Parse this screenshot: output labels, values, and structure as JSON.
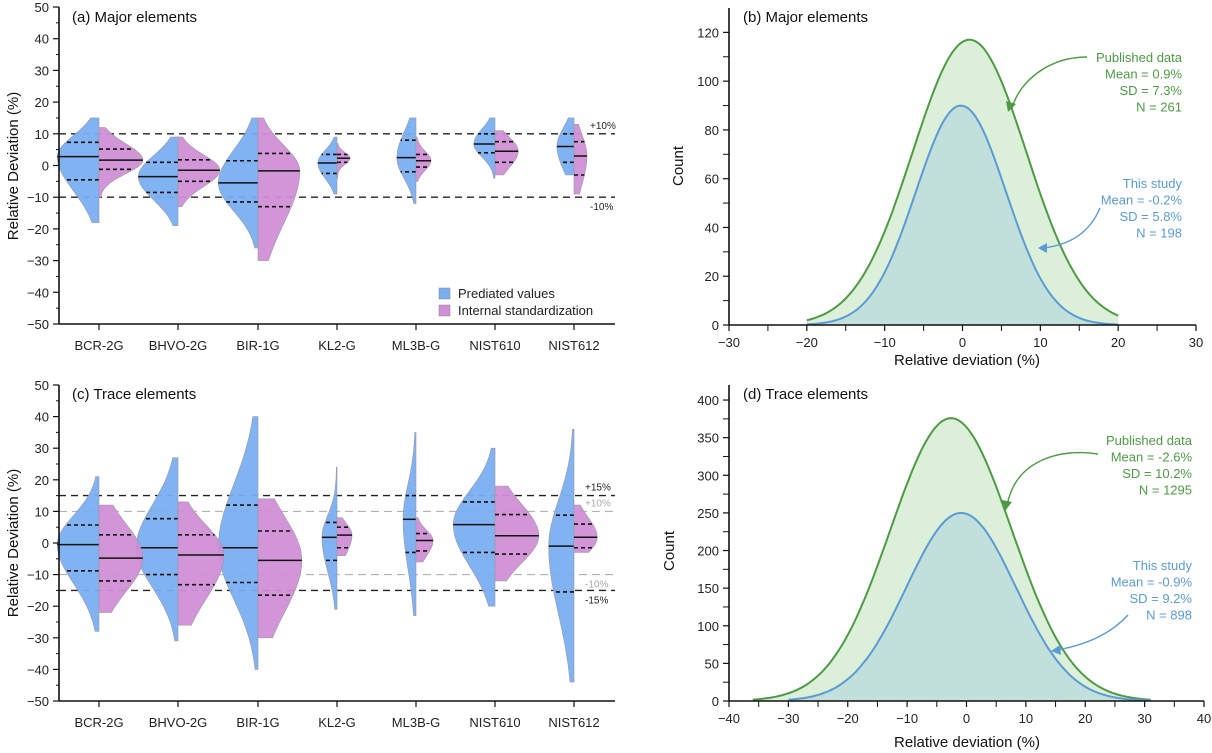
{
  "chart_data": [
    {
      "id": "a",
      "type": "violin",
      "title": "(a) Major elements",
      "xlabel": "",
      "ylabel": "Relative Deviation (%)",
      "ylim": [
        -50,
        50
      ],
      "yticks": [
        50,
        40,
        30,
        20,
        10,
        0,
        -10,
        -20,
        -30,
        -40,
        -50
      ],
      "categories": [
        "BCR-2G",
        "BHVO-2G",
        "BIR-1G",
        "KL2-G",
        "ML3B-G",
        "NIST610",
        "NIST612"
      ],
      "reference_lines": [
        {
          "value": 10,
          "label": "+10%",
          "style": "dark"
        },
        {
          "value": -10,
          "label": "-10%",
          "style": "dark"
        }
      ],
      "legend": {
        "placement": "bottom-right",
        "entries": [
          {
            "name": "Prediated values",
            "color": "#7aaef0"
          },
          {
            "name": "Internal standardization",
            "color": "#d08fd6"
          }
        ]
      },
      "series": [
        {
          "name": "Prediated values",
          "side": "left",
          "color": "#7aaef0",
          "stats": [
            {
              "min": -18,
              "max": 15,
              "q1": -4.5,
              "median": 2.8,
              "q3": 7.3,
              "width": 1.0
            },
            {
              "min": -19,
              "max": 9,
              "q1": -8.5,
              "median": -3.5,
              "q3": 1.0,
              "width": 0.95
            },
            {
              "min": -26,
              "max": 15,
              "q1": -11.5,
              "median": -5.5,
              "q3": 1.5,
              "width": 0.95
            },
            {
              "min": -9,
              "max": 9,
              "q1": -2.5,
              "median": 0.8,
              "q3": 3.5,
              "width": 0.45
            },
            {
              "min": -12,
              "max": 15,
              "q1": -2.0,
              "median": 2.5,
              "q3": 8.0,
              "width": 0.45
            },
            {
              "min": -4,
              "max": 15,
              "q1": 4.0,
              "median": 6.8,
              "q3": 10.0,
              "width": 0.5
            },
            {
              "min": -3,
              "max": 15,
              "q1": 1.0,
              "median": 6.0,
              "q3": 10.0,
              "width": 0.4
            }
          ]
        },
        {
          "name": "Internal standardization",
          "side": "right",
          "color": "#d08fd6",
          "stats": [
            {
              "min": -10,
              "max": 12,
              "q1": -1.2,
              "median": 1.7,
              "q3": 5.2,
              "width": 1.05
            },
            {
              "min": -13,
              "max": 9,
              "q1": -5.0,
              "median": -1.5,
              "q3": 1.8,
              "width": 1.0
            },
            {
              "min": -30,
              "max": 15,
              "q1": -13.0,
              "median": -1.7,
              "q3": 3.8,
              "width": 1.0
            },
            {
              "min": -4,
              "max": 7,
              "q1": 1.0,
              "median": 2.3,
              "q3": 3.5,
              "width": 0.3
            },
            {
              "min": -5,
              "max": 9,
              "q1": -0.5,
              "median": 1.5,
              "q3": 3.5,
              "width": 0.35
            },
            {
              "min": -3,
              "max": 11,
              "q1": 1.0,
              "median": 4.5,
              "q3": 7.5,
              "width": 0.55
            },
            {
              "min": -9,
              "max": 13,
              "q1": -3.0,
              "median": 3.0,
              "q3": 7.5,
              "width": 0.3
            }
          ]
        }
      ]
    },
    {
      "id": "b",
      "type": "area",
      "title": "(b) Major elements",
      "xlabel": "Relative deviation (%)",
      "ylabel": "Count",
      "xlim": [
        -30,
        30
      ],
      "ylim": [
        0,
        130
      ],
      "xticks": [
        -30,
        -20,
        -10,
        0,
        10,
        20,
        30
      ],
      "yticks": [
        0,
        20,
        40,
        60,
        80,
        100,
        120
      ],
      "series": [
        {
          "name": "Published data",
          "mean": 0.9,
          "sd": 7.3,
          "n": 261,
          "peak": 117,
          "range": [
            -20,
            20
          ],
          "color": "#4e9a45",
          "fill": "#dcefd8"
        },
        {
          "name": "This study",
          "mean": -0.2,
          "sd": 5.8,
          "n": 198,
          "peak": 90,
          "range": [
            -20,
            20
          ],
          "color": "#5b9bd5",
          "fill": "#bcdcdc"
        }
      ],
      "annotations": [
        {
          "series": "Published data",
          "lines": [
            "Published data",
            "Mean = 0.9%",
            "SD = 7.3%",
            "N = 261"
          ],
          "color": "#4e9a45"
        },
        {
          "series": "This study",
          "lines": [
            "This study",
            "Mean = -0.2%",
            "SD = 5.8%",
            "N = 198"
          ],
          "color": "#5b9bd5"
        }
      ]
    },
    {
      "id": "c",
      "type": "violin",
      "title": "(c) Trace elements",
      "xlabel": "",
      "ylabel": "Relative Deviation (%)",
      "ylim": [
        -50,
        50
      ],
      "yticks": [
        50,
        40,
        30,
        20,
        10,
        0,
        -10,
        -20,
        -30,
        -40,
        -50
      ],
      "categories": [
        "BCR-2G",
        "BHVO-2G",
        "BIR-1G",
        "KL2-G",
        "ML3B-G",
        "NIST610",
        "NIST612"
      ],
      "reference_lines": [
        {
          "value": 15,
          "label": "+15%",
          "style": "dark"
        },
        {
          "value": 10,
          "label": "+10%",
          "style": "light"
        },
        {
          "value": -10,
          "label": "-10%",
          "style": "light"
        },
        {
          "value": -15,
          "label": "-15%",
          "style": "dark"
        }
      ],
      "series": [
        {
          "name": "Prediated values",
          "side": "left",
          "color": "#7aaef0",
          "stats": [
            {
              "min": -28,
              "max": 21,
              "q1": -8.8,
              "median": -0.5,
              "q3": 5.7,
              "width": 1.0
            },
            {
              "min": -31,
              "max": 27,
              "q1": -10.0,
              "median": -1.5,
              "q3": 7.7,
              "width": 1.0
            },
            {
              "min": -40,
              "max": 40,
              "q1": -12.5,
              "median": -1.5,
              "q3": 12.0,
              "width": 0.95
            },
            {
              "min": -21,
              "max": 24,
              "q1": -5.5,
              "median": 1.8,
              "q3": 6.5,
              "width": 0.35
            },
            {
              "min": -23,
              "max": 35,
              "q1": -3.0,
              "median": 7.5,
              "q3": 15.0,
              "width": 0.3
            },
            {
              "min": -20,
              "max": 30,
              "q1": -3.0,
              "median": 5.8,
              "q3": 13.0,
              "width": 1.0
            },
            {
              "min": -44,
              "max": 36,
              "q1": -15.5,
              "median": -1.0,
              "q3": 8.8,
              "width": 0.6
            }
          ]
        },
        {
          "name": "Internal standardization",
          "side": "right",
          "color": "#d08fd6",
          "stats": [
            {
              "min": -22,
              "max": 12,
              "q1": -12.0,
              "median": -4.8,
              "q3": 2.6,
              "width": 1.05
            },
            {
              "min": -26,
              "max": 13,
              "q1": -13.2,
              "median": -3.8,
              "q3": 2.6,
              "width": 1.1
            },
            {
              "min": -30,
              "max": 14,
              "q1": -16.5,
              "median": -5.5,
              "q3": 3.8,
              "width": 1.05
            },
            {
              "min": -4,
              "max": 8,
              "q1": -1.5,
              "median": 2.5,
              "q3": 5.0,
              "width": 0.35
            },
            {
              "min": -6,
              "max": 8,
              "q1": -2.5,
              "median": 0.8,
              "q3": 3.0,
              "width": 0.4
            },
            {
              "min": -12,
              "max": 18,
              "q1": -3.5,
              "median": 2.3,
              "q3": 9.0,
              "width": 1.05
            },
            {
              "min": -3,
              "max": 12,
              "q1": -1.5,
              "median": 1.8,
              "q3": 6.0,
              "width": 0.55
            }
          ]
        }
      ]
    },
    {
      "id": "d",
      "type": "area",
      "title": "(d) Trace elements",
      "xlabel": "Relative deviation (%)",
      "ylabel": "Count",
      "xlim": [
        -40,
        40
      ],
      "ylim": [
        0,
        420
      ],
      "xticks": [
        -40,
        -30,
        -20,
        -10,
        0,
        10,
        20,
        30,
        40
      ],
      "yticks": [
        0,
        50,
        100,
        150,
        200,
        250,
        300,
        350,
        400
      ],
      "series": [
        {
          "name": "Published data",
          "mean": -2.6,
          "sd": 10.2,
          "n": 1295,
          "peak": 376,
          "range": [
            -36,
            31
          ],
          "color": "#4e9a45",
          "fill": "#dcefd8"
        },
        {
          "name": "This study",
          "mean": -0.9,
          "sd": 9.2,
          "n": 898,
          "peak": 250,
          "range": [
            -30,
            31
          ],
          "color": "#5b9bd5",
          "fill": "#bcdcdc"
        }
      ],
      "annotations": [
        {
          "series": "Published data",
          "lines": [
            "Published data",
            "Mean = -2.6%",
            "SD = 10.2%",
            "N = 1295"
          ],
          "color": "#4e9a45"
        },
        {
          "series": "This study",
          "lines": [
            "This study",
            "Mean = -0.9%",
            "SD = 9.2%",
            "N = 898"
          ],
          "color": "#5b9bd5"
        }
      ]
    }
  ]
}
